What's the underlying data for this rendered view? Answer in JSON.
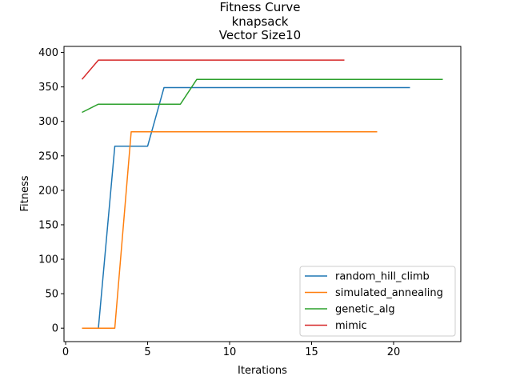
{
  "chart_data": {
    "type": "line",
    "title_lines": [
      "Fitness Curve",
      "knapsack",
      "Vector Size10"
    ],
    "xlabel": "Iterations",
    "ylabel": "Fitness",
    "xlim": [
      -0.1,
      24.1
    ],
    "ylim": [
      -19.5,
      408.8
    ],
    "xticks": [
      0,
      5,
      10,
      15,
      20
    ],
    "yticks": [
      0,
      50,
      100,
      150,
      200,
      250,
      300,
      350,
      400
    ],
    "grid": false,
    "legend_position": "lower-right",
    "series": [
      {
        "name": "random_hill_climb",
        "color": "#1f77b4",
        "x": [
          1,
          2,
          3,
          4,
          5,
          6,
          7,
          8,
          9,
          10,
          11,
          12,
          13,
          14,
          15,
          16,
          17,
          18,
          19,
          20,
          21
        ],
        "y": [
          0,
          0,
          264,
          264,
          264,
          349,
          349,
          349,
          349,
          349,
          349,
          349,
          349,
          349,
          349,
          349,
          349,
          349,
          349,
          349,
          349
        ]
      },
      {
        "name": "simulated_annealing",
        "color": "#ff7f0e",
        "x": [
          1,
          2,
          3,
          4,
          5,
          6,
          7,
          8,
          9,
          10,
          11,
          12,
          13,
          14,
          15,
          16,
          17,
          18,
          19
        ],
        "y": [
          0,
          0,
          0,
          285,
          285,
          285,
          285,
          285,
          285,
          285,
          285,
          285,
          285,
          285,
          285,
          285,
          285,
          285,
          285
        ]
      },
      {
        "name": "genetic_alg",
        "color": "#2ca02c",
        "x": [
          1,
          2,
          3,
          4,
          5,
          6,
          7,
          8,
          9,
          10,
          11,
          12,
          13,
          14,
          15,
          16,
          17,
          18,
          19,
          20,
          21,
          22,
          23
        ],
        "y": [
          313,
          325,
          325,
          325,
          325,
          325,
          325,
          361,
          361,
          361,
          361,
          361,
          361,
          361,
          361,
          361,
          361,
          361,
          361,
          361,
          361,
          361,
          361
        ]
      },
      {
        "name": "mimic",
        "color": "#d62728",
        "x": [
          1,
          2,
          3,
          4,
          5,
          6,
          7,
          8,
          9,
          10,
          11,
          12,
          13,
          14,
          15,
          16,
          17
        ],
        "y": [
          361,
          389,
          389,
          389,
          389,
          389,
          389,
          389,
          389,
          389,
          389,
          389,
          389,
          389,
          389,
          389,
          389
        ]
      }
    ]
  }
}
